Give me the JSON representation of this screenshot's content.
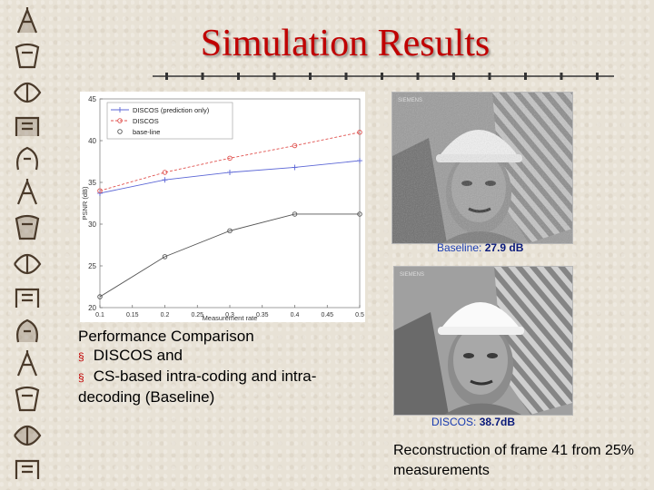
{
  "slide": {
    "title": "Simulation Results"
  },
  "left_caption": {
    "line1": "Performance Comparison",
    "bullets": [
      "DISCOS and",
      "CS-based intra-coding and intra-decoding (Baseline)"
    ],
    "bullet_glyph": "§"
  },
  "images": {
    "baseline_caption_label": "Baseline:",
    "baseline_caption_value": "27.9 dB",
    "discos_caption_label": "DISCOS:",
    "discos_caption_value": "38.7dB",
    "recon_caption": "Reconstruction of frame 41 from 25% measurements",
    "baseline_watermark": "SIEMENS",
    "discos_watermark": "SIEMENS"
  },
  "colors": {
    "title": "#c00000",
    "caption_blue": "#1a3cb0",
    "discos_pred_series": "#5c67d6",
    "discos_series": "#e0524f",
    "baseline_series": "#555555"
  },
  "chart_data": {
    "type": "line",
    "title": "",
    "xlabel": "Measurement rate",
    "ylabel": "PSNR (dB)",
    "xlim": [
      0.1,
      0.5
    ],
    "ylim": [
      20,
      45
    ],
    "xticks": [
      0.1,
      0.15,
      0.2,
      0.25,
      0.3,
      0.35,
      0.4,
      0.45,
      0.5
    ],
    "yticks": [
      20,
      25,
      30,
      35,
      40,
      45
    ],
    "grid": false,
    "legend": "top-left",
    "series": [
      {
        "name": "DISCOS (prediction only)",
        "x": [
          0.1,
          0.2,
          0.3,
          0.4,
          0.5
        ],
        "y": [
          33.7,
          35.3,
          36.2,
          36.8,
          37.6
        ],
        "style": "solid",
        "marker": "plus"
      },
      {
        "name": "DISCOS",
        "x": [
          0.1,
          0.2,
          0.3,
          0.4,
          0.5
        ],
        "y": [
          34.0,
          36.2,
          37.9,
          39.4,
          41.0
        ],
        "style": "dashed",
        "marker": "circle"
      },
      {
        "name": "base-line",
        "x": [
          0.1,
          0.2,
          0.3,
          0.4,
          0.5
        ],
        "y": [
          21.3,
          26.1,
          29.2,
          31.2,
          31.2
        ],
        "style": "solid",
        "marker": "circle"
      }
    ]
  }
}
